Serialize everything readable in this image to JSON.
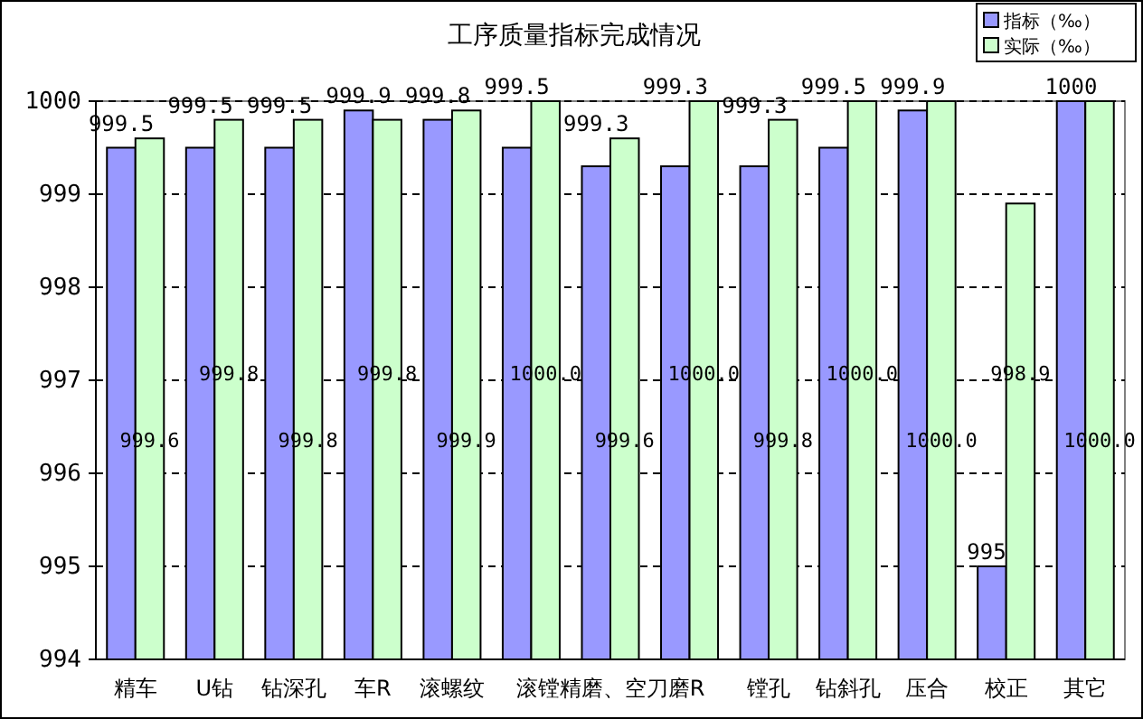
{
  "chart_data": {
    "type": "bar",
    "title": "工序质量指标完成情况",
    "categories": [
      "精车",
      "U钻",
      "钻深孔",
      "车R",
      "滚螺纹",
      null,
      "滚镗精磨、空刀磨R",
      null,
      "镗孔",
      "钻斜孔",
      "压合",
      "校正",
      "其它"
    ],
    "series": [
      {
        "name": "指标（‰）",
        "color": "#9999ff",
        "values": [
          999.5,
          999.5,
          999.5,
          999.9,
          999.8,
          999.5,
          999.3,
          999.3,
          999.3,
          999.5,
          999.9,
          995,
          1000
        ],
        "value_labels": [
          "999.5",
          "999.5",
          "999.5",
          "999.9",
          "999.8",
          "999.5",
          "999.3",
          "999.3",
          "999.3",
          "999.5",
          "999.9",
          "995",
          "1000"
        ]
      },
      {
        "name": "实际（‰）",
        "color": "#ccffcc",
        "values": [
          999.6,
          999.8,
          999.8,
          999.8,
          999.9,
          1000.0,
          999.6,
          1000.0,
          999.8,
          1000.0,
          1000.0,
          998.9,
          1000.0
        ],
        "value_labels": [
          "999.6",
          "999.8",
          "999.8",
          "999.8",
          "999.9",
          "1000.0",
          "999.6",
          "1000.0",
          "999.8",
          "1000.0",
          "1000.0",
          "998.9",
          "1000.0"
        ]
      }
    ],
    "ylim": [
      994,
      1000
    ],
    "yticks": [
      994,
      995,
      996,
      997,
      998,
      999,
      1000
    ],
    "grid": "y",
    "legend": "top right"
  }
}
